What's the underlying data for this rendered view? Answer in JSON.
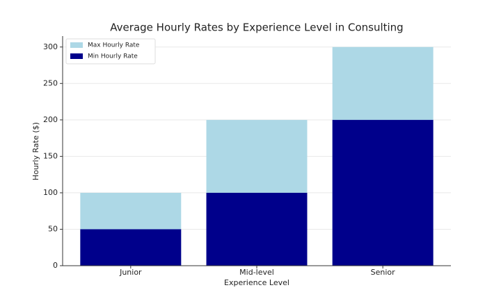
{
  "chart_data": {
    "type": "bar",
    "title": "Average Hourly Rates by Experience Level in Consulting",
    "x_label": "Experience Level",
    "y_label": "Hourly Rate ($)",
    "categories": [
      "Junior",
      "Mid-level",
      "Senior"
    ],
    "series": [
      {
        "name": "Max Hourly Rate",
        "color": "#add8e6",
        "values": [
          100,
          200,
          300
        ]
      },
      {
        "name": "Min Hourly Rate",
        "color": "#00008b",
        "values": [
          50,
          100,
          200
        ]
      }
    ],
    "ylim": [
      0,
      315
    ],
    "yticks": [
      0,
      50,
      100,
      150,
      200,
      250,
      300
    ],
    "grid": true,
    "legend": "upper-left"
  }
}
